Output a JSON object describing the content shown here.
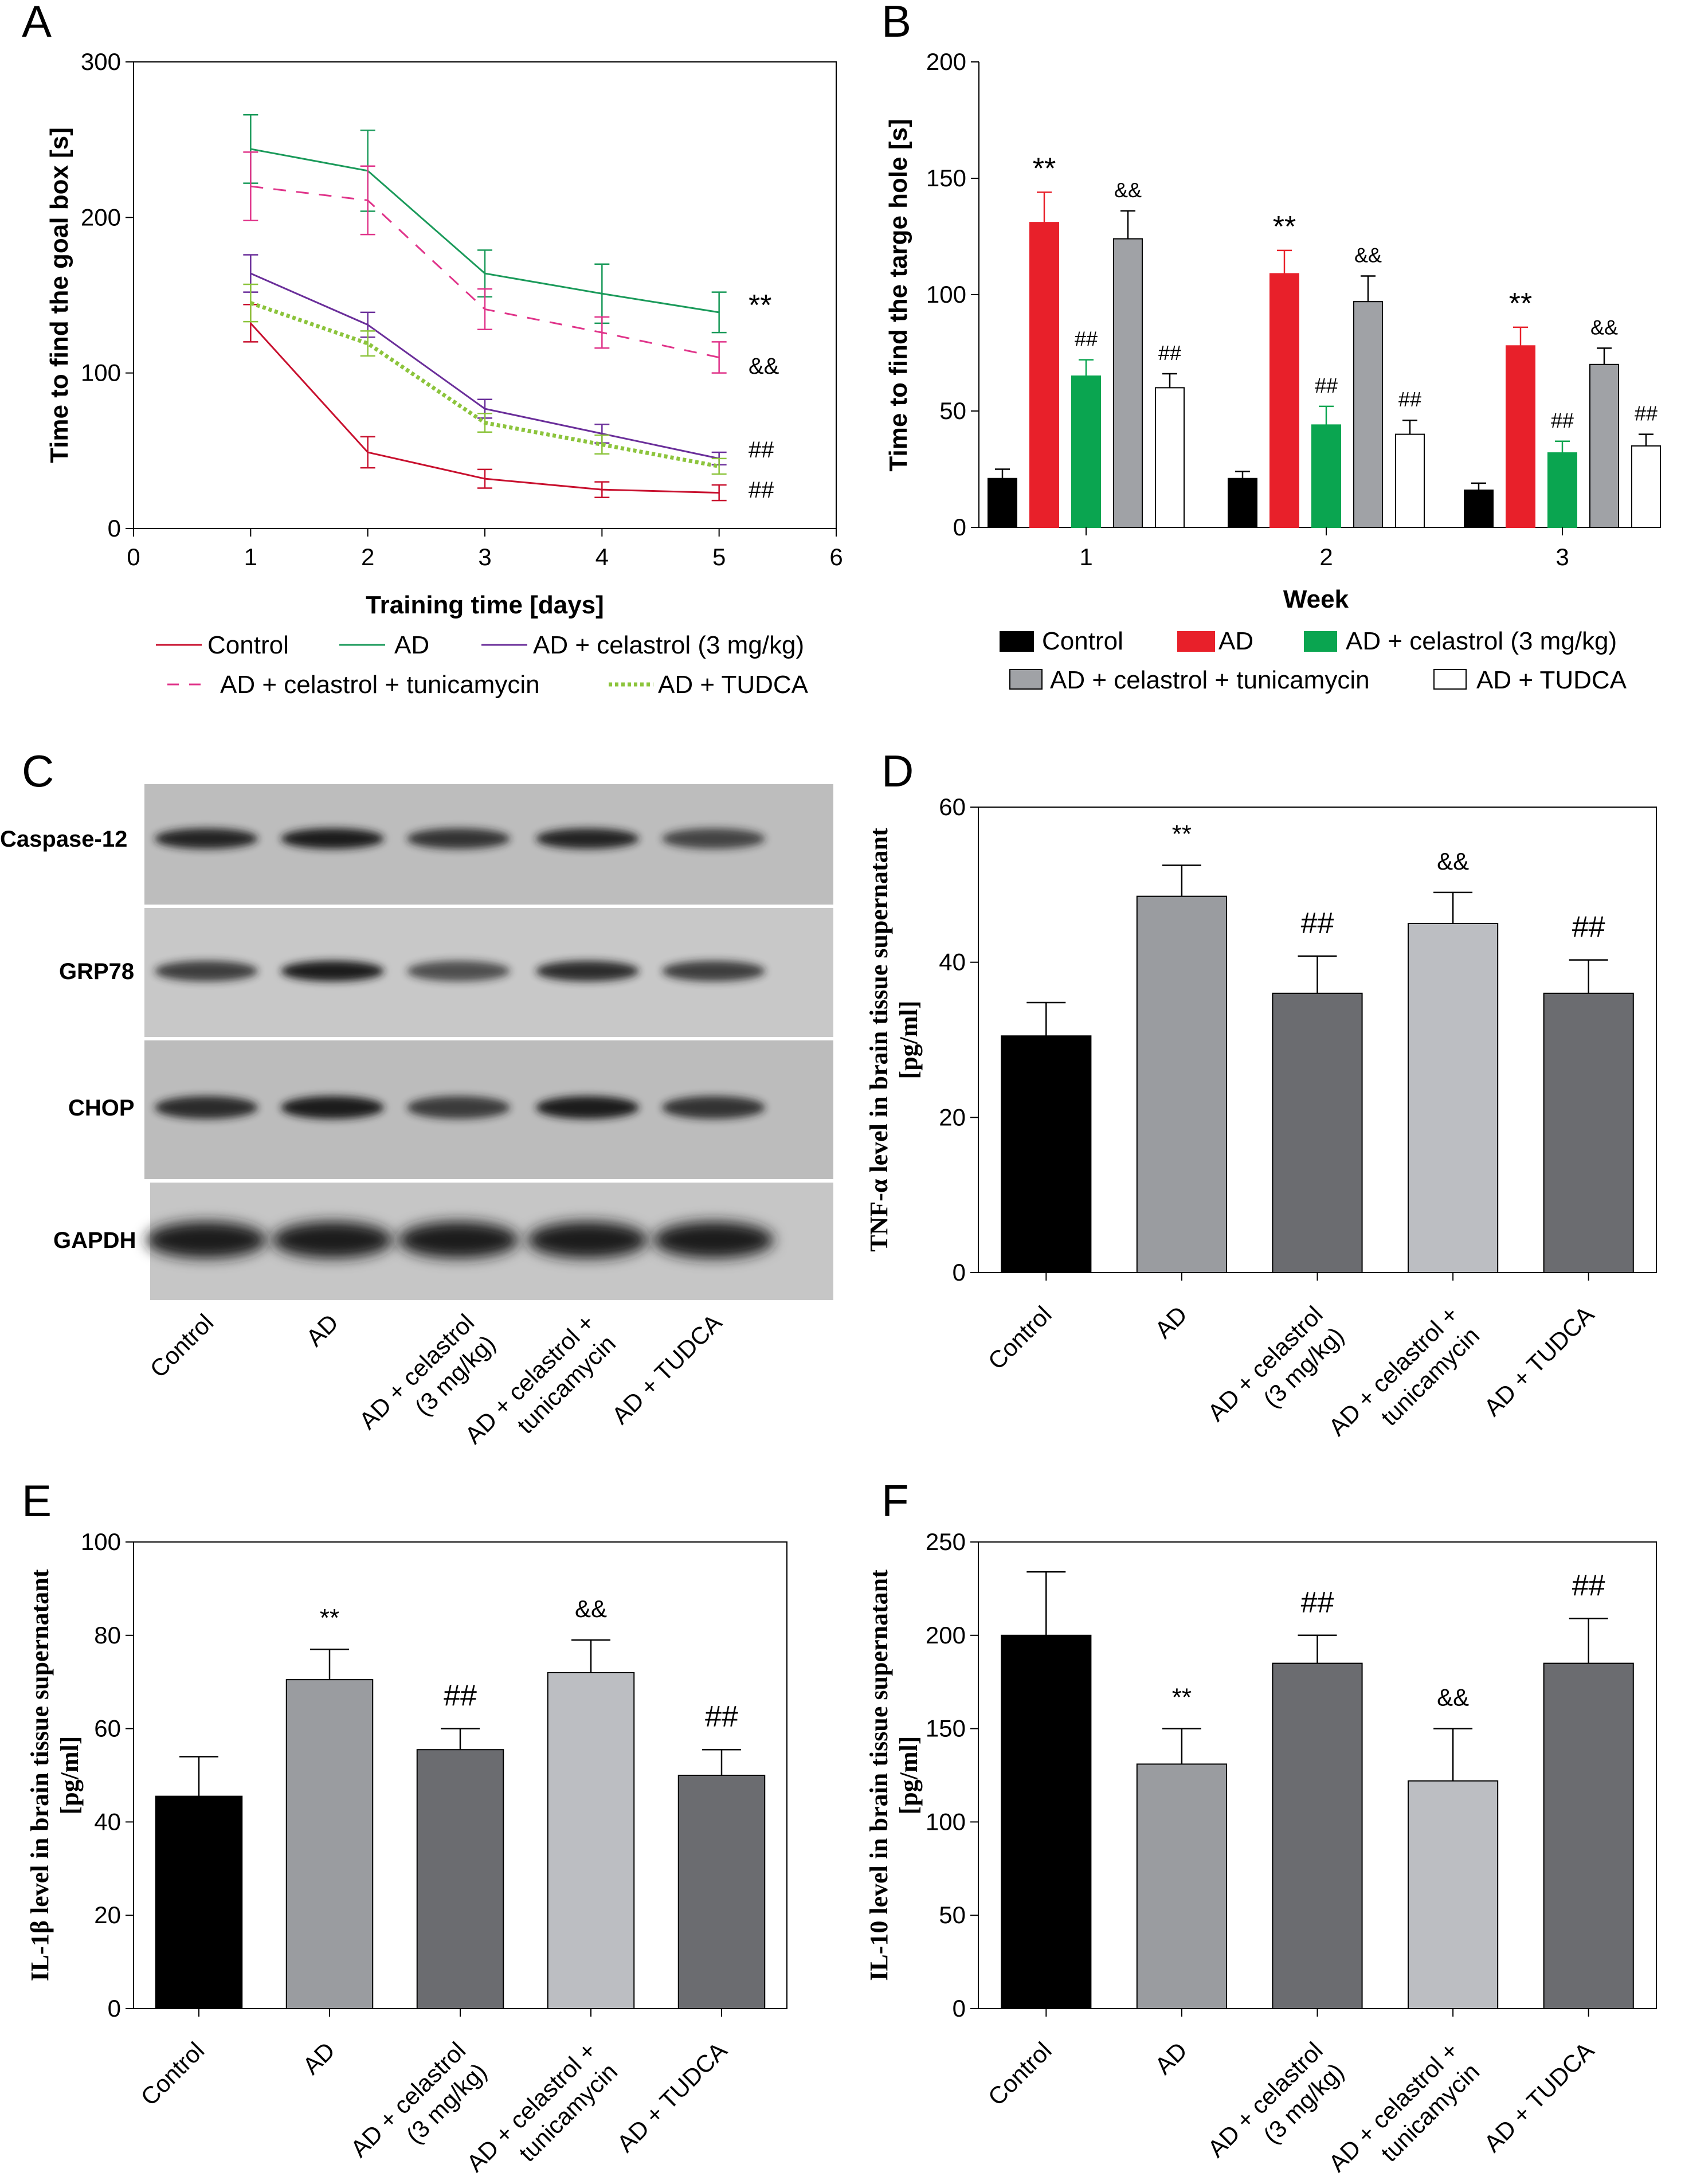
{
  "panels": {
    "A": "A",
    "B": "B",
    "C": "C",
    "D": "D",
    "E": "E",
    "F": "F"
  },
  "colors": {
    "control_line": "#c8102e",
    "ad_line": "#1a9a5a",
    "celastrol_line": "#6a2e9a",
    "tunicamycin_line": "#e0348a",
    "tudca_line": "#8cc43c",
    "bar_control": "#000000",
    "bar_ad_b": "#e8202a",
    "bar_celastrol_b": "#0aa550",
    "bar_tunicamycin_b": "#a0a2a6",
    "bar_tudca_b": "#ffffff",
    "bar_ad_gray": "#9a9ca0",
    "bar_celastrol_gray": "#6b6c70",
    "bar_tunicamycin_gray": "#bcbec2",
    "bar_tudca_gray": "#6b6c70"
  },
  "chart_data": [
    {
      "panel": "A",
      "type": "line",
      "xlabel": "Training time [days]",
      "ylabel": "Time to find the goal box [s]",
      "xlim": [
        0,
        6
      ],
      "ylim": [
        0,
        300
      ],
      "xticks": [
        "0",
        "1",
        "2",
        "3",
        "4",
        "5",
        "6"
      ],
      "yticks": [
        "0",
        "100",
        "200",
        "300"
      ],
      "x": [
        1,
        2,
        3,
        4,
        5
      ],
      "series": [
        {
          "name": "Control",
          "values": [
            132,
            49,
            32,
            25,
            23
          ],
          "errors": [
            12,
            10,
            6,
            5,
            5
          ],
          "style": "solid",
          "color_key": "control_line",
          "annotation": "##"
        },
        {
          "name": "AD",
          "values": [
            244,
            230,
            164,
            151,
            139
          ],
          "errors": [
            22,
            26,
            15,
            19,
            13
          ],
          "style": "solid",
          "color_key": "ad_line",
          "annotation": "**"
        },
        {
          "name": "AD + celastrol (3 mg/kg)",
          "values": [
            164,
            131,
            77,
            61,
            45
          ],
          "errors": [
            12,
            8,
            6,
            6,
            4
          ],
          "style": "solid",
          "color_key": "celastrol_line",
          "annotation": "##"
        },
        {
          "name": "AD + celastrol + tunicamycin",
          "values": [
            220,
            211,
            141,
            126,
            110
          ],
          "errors": [
            22,
            22,
            13,
            10,
            10
          ],
          "style": "dashed",
          "color_key": "tunicamycin_line",
          "annotation": "&&"
        },
        {
          "name": "AD + TUDCA",
          "values": [
            145,
            119,
            68,
            54,
            40
          ],
          "errors": [
            12,
            8,
            6,
            6,
            5
          ],
          "style": "dotted",
          "color_key": "tudca_line",
          "annotation": ""
        }
      ],
      "legend": {
        "position": "below"
      }
    },
    {
      "panel": "B",
      "type": "bar",
      "xlabel": "Week",
      "ylabel": "Time to find the targe hole [s]",
      "ylim": [
        0,
        200
      ],
      "yticks": [
        "0",
        "50",
        "100",
        "150",
        "200"
      ],
      "categories": [
        "1",
        "2",
        "3"
      ],
      "series": [
        {
          "name": "Control",
          "values": [
            21,
            21,
            16
          ],
          "errors": [
            4,
            3,
            3
          ],
          "color_key": "bar_control",
          "annotations": [
            "",
            "",
            ""
          ]
        },
        {
          "name": "AD",
          "values": [
            131,
            109,
            78
          ],
          "errors": [
            13,
            10,
            8
          ],
          "color_key": "bar_ad_b",
          "annotations": [
            "**",
            "**",
            "**"
          ]
        },
        {
          "name": "AD + celastrol (3 mg/kg)",
          "values": [
            65,
            44,
            32
          ],
          "errors": [
            7,
            8,
            5
          ],
          "color_key": "bar_celastrol_b",
          "annotations": [
            "##",
            "##",
            "##"
          ]
        },
        {
          "name": "AD + celastrol + tunicamycin",
          "values": [
            124,
            97,
            70
          ],
          "errors": [
            12,
            11,
            7
          ],
          "color_key": "bar_tunicamycin_b",
          "annotations": [
            "&&",
            "&&",
            "&&"
          ]
        },
        {
          "name": "AD + TUDCA",
          "values": [
            60,
            40,
            35
          ],
          "errors": [
            6,
            6,
            5
          ],
          "color_key": "bar_tudca_b",
          "annotations": [
            "##",
            "##",
            "##"
          ]
        }
      ],
      "legend": {
        "position": "below"
      }
    },
    {
      "panel": "C",
      "type": "table",
      "rows": [
        "Caspase-12",
        "GRP78",
        "CHOP",
        "GAPDH"
      ],
      "columns": [
        "Control",
        "AD",
        "AD + celastrol (3 mg/kg)",
        "AD + celastrol + tunicamycin",
        "AD + TUDCA"
      ],
      "column_label_lines": [
        [
          "Control"
        ],
        [
          "AD"
        ],
        [
          "AD + celastrol",
          "(3 mg/kg)"
        ],
        [
          "AD + celastrol +",
          "tunicamycin"
        ],
        [
          "AD + TUDCA"
        ]
      ]
    },
    {
      "panel": "D",
      "type": "bar",
      "ylabel_line1": "TNF-α level in brain tissue supernatant",
      "ylabel_line2": "[pg/ml]",
      "ylim": [
        0,
        60
      ],
      "yticks": [
        "0",
        "20",
        "40",
        "60"
      ],
      "categories": [
        "Control",
        "AD",
        "AD + celastrol (3 mg/kg)",
        "AD + celastrol + tunicamycin",
        "AD + TUDCA"
      ],
      "category_label_lines": [
        [
          "Control"
        ],
        [
          "AD"
        ],
        [
          "AD + celastrol",
          "(3 mg/kg)"
        ],
        [
          "AD + celastrol +",
          "tunicamycin"
        ],
        [
          "AD + TUDCA"
        ]
      ],
      "values": [
        30.5,
        48.5,
        36,
        45,
        36
      ],
      "errors": [
        4.3,
        4,
        4.8,
        4,
        4.3
      ],
      "annotations": [
        "",
        "**",
        "##",
        "&&",
        "##"
      ],
      "color_keys": [
        "bar_control",
        "bar_ad_gray",
        "bar_celastrol_gray",
        "bar_tunicamycin_gray",
        "bar_tudca_gray"
      ]
    },
    {
      "panel": "E",
      "type": "bar",
      "ylabel_line1": "IL-1β level in brain tissue supernatant",
      "ylabel_line2": "[pg/ml]",
      "ylim": [
        0,
        100
      ],
      "yticks": [
        "0",
        "20",
        "40",
        "60",
        "80",
        "100"
      ],
      "categories": [
        "Control",
        "AD",
        "AD + celastrol (3 mg/kg)",
        "AD + celastrol + tunicamycin",
        "AD + TUDCA"
      ],
      "category_label_lines": [
        [
          "Control"
        ],
        [
          "AD"
        ],
        [
          "AD + celastrol",
          "(3 mg/kg)"
        ],
        [
          "AD + celastrol +",
          "tunicamycin"
        ],
        [
          "AD + TUDCA"
        ]
      ],
      "values": [
        45.5,
        70.5,
        55.5,
        72,
        50
      ],
      "errors": [
        8.5,
        6.5,
        4.5,
        7,
        5.5
      ],
      "annotations": [
        "",
        "**",
        "##",
        "&&",
        "##"
      ],
      "color_keys": [
        "bar_control",
        "bar_ad_gray",
        "bar_celastrol_gray",
        "bar_tunicamycin_gray",
        "bar_tudca_gray"
      ]
    },
    {
      "panel": "F",
      "type": "bar",
      "ylabel_line1": "IL-10 level in brain tissue supernatant",
      "ylabel_line2": "[pg/ml]",
      "ylim": [
        0,
        250
      ],
      "yticks": [
        "0",
        "50",
        "100",
        "150",
        "200",
        "250"
      ],
      "categories": [
        "Control",
        "AD",
        "AD + celastrol (3 mg/kg)",
        "AD + celastrol + tunicamycin",
        "AD + TUDCA"
      ],
      "category_label_lines": [
        [
          "Control"
        ],
        [
          "AD"
        ],
        [
          "AD + celastrol",
          "(3 mg/kg)"
        ],
        [
          "AD + celastrol +",
          "tunicamycin"
        ],
        [
          "AD + TUDCA"
        ]
      ],
      "values": [
        200,
        131,
        185,
        122,
        185
      ],
      "errors": [
        34,
        19,
        15,
        28,
        24
      ],
      "annotations": [
        "",
        "**",
        "##",
        "&&",
        "##"
      ],
      "color_keys": [
        "bar_control",
        "bar_ad_gray",
        "bar_celastrol_gray",
        "bar_tunicamycin_gray",
        "bar_tudca_gray"
      ]
    }
  ]
}
